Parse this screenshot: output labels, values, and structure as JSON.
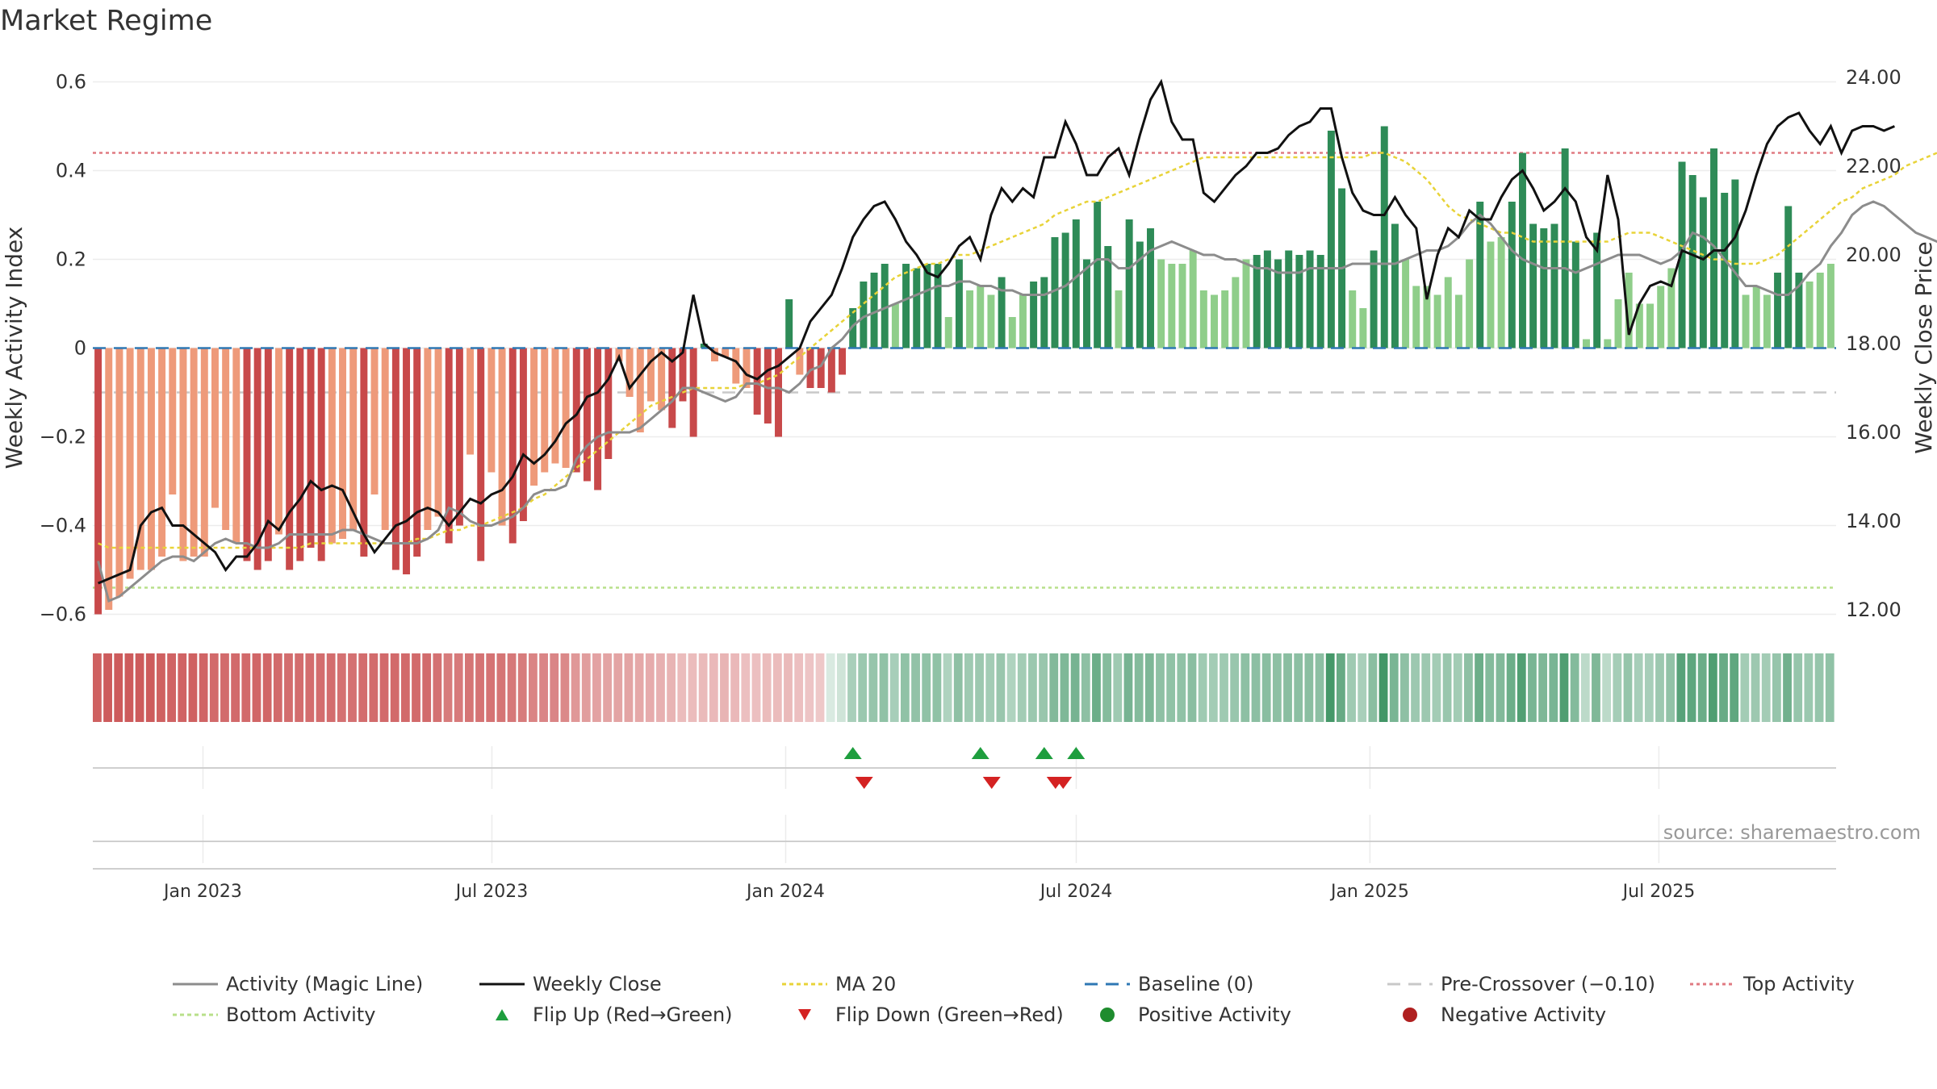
{
  "title": "Market Regime",
  "source": "source: sharemaestro.com",
  "chart_data": {
    "type": "bar",
    "title": "Market Regime",
    "ylabel": "Weekly Activity Index",
    "y2label": "Weekly Close Price",
    "ylim": [
      -0.63,
      0.63
    ],
    "y2lim": [
      11.6,
      24.2
    ],
    "yticks": [
      "0.6",
      "0.4",
      "0.2",
      "0",
      "−0.2",
      "−0.4",
      "−0.6"
    ],
    "y2ticks": [
      "24.00",
      "22.00",
      "20.00",
      "18.00",
      "16.00",
      "14.00",
      "12.00"
    ],
    "xticks": [
      "Jan 2023",
      "Jul 2023",
      "Jan 2024",
      "Jul 2024",
      "Jan 2025",
      "Jul 2025"
    ],
    "x_start": "2022-10-24",
    "x_end": "2025-10-13",
    "frequency": "weekly",
    "activity": [
      -0.48,
      -0.57,
      -0.56,
      -0.54,
      -0.52,
      -0.5,
      -0.48,
      -0.47,
      -0.47,
      -0.48,
      -0.46,
      -0.44,
      -0.43,
      -0.44,
      -0.44,
      -0.45,
      -0.45,
      -0.44,
      -0.42,
      -0.42,
      -0.42,
      -0.42,
      -0.42,
      -0.41,
      -0.41,
      -0.42,
      -0.43,
      -0.44,
      -0.44,
      -0.44,
      -0.44,
      -0.43,
      -0.41,
      -0.36,
      -0.37,
      -0.39,
      -0.4,
      -0.4,
      -0.39,
      -0.38,
      -0.36,
      -0.33,
      -0.32,
      -0.32,
      -0.31,
      -0.25,
      -0.22,
      -0.2,
      -0.19,
      -0.19,
      -0.19,
      -0.18,
      -0.16,
      -0.14,
      -0.12,
      -0.09,
      -0.09,
      -0.1,
      -0.11,
      -0.12,
      -0.11,
      -0.08,
      -0.08,
      -0.09,
      -0.09,
      -0.1,
      -0.08,
      -0.05,
      -0.04,
      0.0,
      0.02,
      0.05,
      0.07,
      0.08,
      0.09,
      0.1,
      0.11,
      0.12,
      0.13,
      0.14,
      0.14,
      0.15,
      0.15,
      0.14,
      0.14,
      0.13,
      0.13,
      0.12,
      0.12,
      0.12,
      0.13,
      0.14,
      0.16,
      0.18,
      0.2,
      0.2,
      0.18,
      0.18,
      0.2,
      0.22,
      0.23,
      0.24,
      0.23,
      0.22,
      0.21,
      0.21,
      0.2,
      0.2,
      0.19,
      0.18,
      0.18,
      0.17,
      0.17,
      0.17,
      0.18,
      0.18,
      0.18,
      0.18,
      0.19,
      0.19,
      0.19,
      0.19,
      0.19,
      0.2,
      0.21,
      0.22,
      0.22,
      0.23,
      0.25,
      0.28,
      0.3,
      0.28,
      0.25,
      0.22,
      0.2,
      0.19,
      0.18,
      0.18,
      0.18,
      0.17,
      0.18,
      0.19,
      0.2,
      0.21,
      0.21,
      0.21,
      0.2,
      0.19,
      0.2,
      0.22,
      0.26,
      0.25,
      0.23,
      0.2,
      0.17,
      0.14,
      0.14,
      0.13,
      0.12,
      0.12,
      0.14,
      0.17,
      0.19,
      0.23,
      0.26,
      0.3,
      0.32,
      0.33,
      0.32,
      0.3,
      0.28,
      0.26,
      0.25,
      0.24,
      0.24,
      0.23,
      0.22,
      0.21,
      0.21,
      0.21
    ],
    "close": [
      12.6,
      12.7,
      12.8,
      12.9,
      13.9,
      14.2,
      14.3,
      13.9,
      13.9,
      13.7,
      13.5,
      13.3,
      12.9,
      13.2,
      13.2,
      13.5,
      14.0,
      13.8,
      14.2,
      14.5,
      14.9,
      14.7,
      14.8,
      14.7,
      14.2,
      13.7,
      13.3,
      13.6,
      13.9,
      14.0,
      14.2,
      14.3,
      14.2,
      13.9,
      14.2,
      14.5,
      14.4,
      14.6,
      14.7,
      15.0,
      15.5,
      15.3,
      15.5,
      15.8,
      16.2,
      16.4,
      16.8,
      16.9,
      17.2,
      17.7,
      17.0,
      17.3,
      17.6,
      17.8,
      17.6,
      17.8,
      19.1,
      18.0,
      17.8,
      17.7,
      17.6,
      17.3,
      17.2,
      17.4,
      17.5,
      17.7,
      17.9,
      18.5,
      18.8,
      19.1,
      19.7,
      20.4,
      20.8,
      21.1,
      21.2,
      20.8,
      20.3,
      20.0,
      19.6,
      19.5,
      19.8,
      20.2,
      20.4,
      19.9,
      20.9,
      21.5,
      21.2,
      21.5,
      21.3,
      22.2,
      22.2,
      23.0,
      22.5,
      21.8,
      21.8,
      22.2,
      22.4,
      21.8,
      22.7,
      23.5,
      23.9,
      23.0,
      22.6,
      22.6,
      21.4,
      21.2,
      21.5,
      21.8,
      22.0,
      22.3,
      22.3,
      22.4,
      22.7,
      22.9,
      23.0,
      23.3,
      23.3,
      22.2,
      21.4,
      21.0,
      20.9,
      20.9,
      21.3,
      20.9,
      20.6,
      19.0,
      20.0,
      20.6,
      20.4,
      21.0,
      20.8,
      20.8,
      21.3,
      21.7,
      21.9,
      21.5,
      21.0,
      21.2,
      21.5,
      21.2,
      20.4,
      20.1,
      21.8,
      20.8,
      18.2,
      18.9,
      19.3,
      19.4,
      19.3,
      20.1,
      20.0,
      19.9,
      20.1,
      20.1,
      20.4,
      21.0,
      21.8,
      22.5,
      22.9,
      23.1,
      23.2,
      22.8,
      22.5,
      22.9,
      22.3,
      22.8,
      22.9,
      22.9,
      22.8,
      22.9
    ],
    "ma20": [
      -0.44,
      -0.45,
      -0.45,
      -0.45,
      -0.45,
      -0.45,
      -0.45,
      -0.45,
      -0.45,
      -0.45,
      -0.45,
      -0.45,
      -0.45,
      -0.45,
      -0.45,
      -0.45,
      -0.45,
      -0.45,
      -0.45,
      -0.45,
      -0.44,
      -0.44,
      -0.44,
      -0.44,
      -0.44,
      -0.44,
      -0.44,
      -0.44,
      -0.44,
      -0.44,
      -0.43,
      -0.43,
      -0.42,
      -0.41,
      -0.41,
      -0.4,
      -0.4,
      -0.39,
      -0.38,
      -0.37,
      -0.36,
      -0.34,
      -0.33,
      -0.31,
      -0.29,
      -0.27,
      -0.25,
      -0.23,
      -0.21,
      -0.19,
      -0.17,
      -0.15,
      -0.13,
      -0.12,
      -0.11,
      -0.1,
      -0.09,
      -0.09,
      -0.09,
      -0.09,
      -0.09,
      -0.08,
      -0.08,
      -0.07,
      -0.06,
      -0.04,
      -0.02,
      0.0,
      0.02,
      0.04,
      0.06,
      0.08,
      0.1,
      0.12,
      0.14,
      0.16,
      0.17,
      0.18,
      0.19,
      0.19,
      0.2,
      0.21,
      0.21,
      0.22,
      0.23,
      0.24,
      0.25,
      0.26,
      0.27,
      0.28,
      0.3,
      0.31,
      0.32,
      0.33,
      0.33,
      0.34,
      0.35,
      0.36,
      0.37,
      0.38,
      0.39,
      0.4,
      0.41,
      0.42,
      0.43,
      0.43,
      0.43,
      0.43,
      0.43,
      0.43,
      0.43,
      0.43,
      0.43,
      0.43,
      0.43,
      0.43,
      0.43,
      0.43,
      0.43,
      0.43,
      0.44,
      0.44,
      0.43,
      0.42,
      0.4,
      0.38,
      0.35,
      0.32,
      0.3,
      0.29,
      0.28,
      0.27,
      0.26,
      0.26,
      0.25,
      0.24,
      0.24,
      0.24,
      0.24,
      0.24,
      0.24,
      0.24,
      0.24,
      0.25,
      0.26,
      0.26,
      0.26,
      0.25,
      0.24,
      0.23,
      0.22,
      0.21,
      0.2,
      0.2,
      0.19,
      0.19,
      0.19,
      0.2,
      0.21,
      0.23,
      0.25,
      0.27,
      0.29,
      0.31,
      0.33,
      0.34,
      0.36,
      0.37,
      0.38,
      0.39,
      0.41,
      0.42,
      0.43,
      0.44
    ],
    "bars": [
      -0.6,
      -0.59,
      -0.56,
      -0.52,
      -0.5,
      -0.5,
      -0.47,
      -0.33,
      -0.48,
      -0.47,
      -0.47,
      -0.36,
      -0.41,
      -0.44,
      -0.48,
      -0.5,
      -0.48,
      -0.42,
      -0.5,
      -0.48,
      -0.45,
      -0.48,
      -0.44,
      -0.43,
      -0.41,
      -0.47,
      -0.33,
      -0.41,
      -0.5,
      -0.51,
      -0.47,
      -0.41,
      -0.38,
      -0.44,
      -0.4,
      -0.24,
      -0.48,
      -0.28,
      -0.4,
      -0.44,
      -0.39,
      -0.31,
      -0.28,
      -0.26,
      -0.27,
      -0.28,
      -0.3,
      -0.32,
      -0.25,
      -0.03,
      -0.11,
      -0.19,
      -0.12,
      -0.14,
      -0.18,
      -0.12,
      -0.2,
      0.01,
      -0.03,
      -0.02,
      -0.08,
      -0.09,
      -0.15,
      -0.17,
      -0.2,
      0.11,
      -0.06,
      -0.09,
      -0.09,
      -0.1,
      -0.06,
      0.09,
      0.15,
      0.17,
      0.19,
      0.1,
      0.19,
      0.18,
      0.19,
      0.19,
      0.07,
      0.2,
      0.13,
      0.14,
      0.12,
      0.16,
      0.07,
      0.12,
      0.15,
      0.16,
      0.25,
      0.26,
      0.29,
      0.2,
      0.33,
      0.23,
      0.13,
      0.29,
      0.24,
      0.27,
      0.2,
      0.19,
      0.19,
      0.22,
      0.13,
      0.12,
      0.13,
      0.16,
      0.2,
      0.21,
      0.22,
      0.2,
      0.22,
      0.21,
      0.22,
      0.21,
      0.49,
      0.36,
      0.13,
      0.09,
      0.22,
      0.5,
      0.28,
      0.2,
      0.14,
      0.14,
      0.12,
      0.16,
      0.12,
      0.2,
      0.33,
      0.24,
      0.25,
      0.33,
      0.44,
      0.28,
      0.27,
      0.28,
      0.45,
      0.24,
      0.02,
      0.26,
      0.02,
      0.11,
      0.17,
      0.1,
      0.1,
      0.14,
      0.18,
      0.42,
      0.39,
      0.34,
      0.45,
      0.35,
      0.38,
      0.12,
      0.14,
      0.12,
      0.17,
      0.32,
      0.17,
      0.15,
      0.17,
      0.19
    ],
    "top_activity": 0.44,
    "bottom_activity": -0.54,
    "baseline": 0,
    "pre_crossover": -0.1,
    "flip_up_index": [
      71,
      83,
      89,
      92
    ],
    "flip_down_index": [
      71,
      83,
      89,
      92
    ],
    "legend": {
      "activity": "Activity (Magic Line)",
      "close": "Weekly Close",
      "ma20": "MA 20",
      "baseline": "Baseline (0)",
      "pre_crossover": "Pre-Crossover (−0.10)",
      "top": "Top Activity",
      "bottom": "Bottom Activity",
      "flip_up": "Flip Up (Red→Green)",
      "flip_down": "Flip Down (Green→Red)",
      "positive": "Positive Activity",
      "negative": "Negative Activity"
    },
    "legend_placement": "bottom",
    "colors": {
      "activity_line": "#8c8c8c",
      "close_line": "#111111",
      "ma20": "#e8d338",
      "baseline": "#2f78b4",
      "pre_crossover": "#c8c8c8",
      "top": "#e07a82",
      "bottom": "#b8e08a",
      "pos_dark": "#2e8b57",
      "pos_light": "#8fce8a",
      "neg_dark": "#c8494a",
      "neg_light": "#ee9a7a",
      "flip_up": "#1e9e3e",
      "flip_down": "#d42222",
      "positive_dot": "#1e8c2e",
      "negative_dot": "#b02020"
    },
    "grid": true
  }
}
